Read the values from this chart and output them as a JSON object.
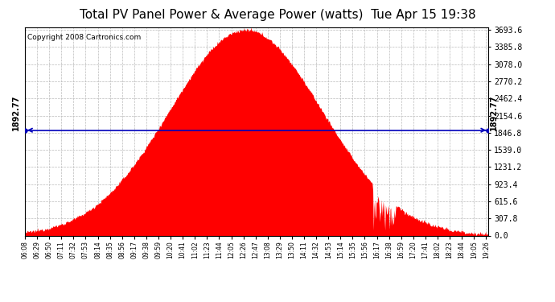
{
  "title": "Total PV Panel Power & Average Power (watts)  Tue Apr 15 19:38",
  "copyright": "Copyright 2008 Cartronics.com",
  "y_max": 3693.6,
  "y_min": 0.0,
  "y_ticks": [
    0.0,
    307.8,
    615.6,
    923.4,
    1231.2,
    1539.0,
    1846.8,
    2154.6,
    2462.4,
    2770.2,
    3078.0,
    3385.8,
    3693.6
  ],
  "average_power": 1892.77,
  "fill_color": "#FF0000",
  "line_color": "#0000BB",
  "background_color": "#FFFFFF",
  "plot_bg_color": "#FFFFFF",
  "grid_color": "#BBBBBB",
  "title_fontsize": 11,
  "copyright_fontsize": 6.5,
  "x_start_min": 368,
  "x_end_min": 1170,
  "x_tick_interval_min": 21,
  "peak_power": 3693.6,
  "peak_time_min": 750,
  "sigma_factor": 0.33
}
